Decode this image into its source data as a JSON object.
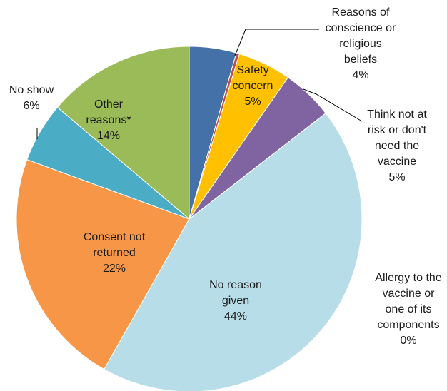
{
  "chart_data": {
    "type": "pie",
    "title": "",
    "slices": [
      {
        "label": [
          "Reasons of",
          "conscience or",
          "religious",
          "beliefs"
        ],
        "value_label": "4%",
        "value": 4.4,
        "color": "#4472a8"
      },
      {
        "label": [
          "Allergy to the",
          "vaccine or",
          "one of its",
          "components"
        ],
        "value_label": "0%",
        "value": 0.3,
        "color": "#c0504d"
      },
      {
        "label": [
          "Safety",
          "concern"
        ],
        "value_label": "5%",
        "value": 5.0,
        "color": "#ffc000"
      },
      {
        "label": [
          "Think not at",
          "risk or don't",
          "need the",
          "vaccine"
        ],
        "value_label": "5%",
        "value": 4.8,
        "color": "#8064a2"
      },
      {
        "label": [
          "No reason",
          "given"
        ],
        "value_label": "44%",
        "value": 43.7,
        "color": "#b7dde8"
      },
      {
        "label": [
          "Consent not",
          "returned"
        ],
        "value_label": "22%",
        "value": 22.4,
        "color": "#f79646"
      },
      {
        "label": [
          "No show"
        ],
        "value_label": "6%",
        "value": 5.6,
        "color": "#4bacc6"
      },
      {
        "label": [
          "Other",
          "reasons*"
        ],
        "value_label": "14%",
        "value": 13.8,
        "color": "#9bbb59"
      }
    ]
  }
}
